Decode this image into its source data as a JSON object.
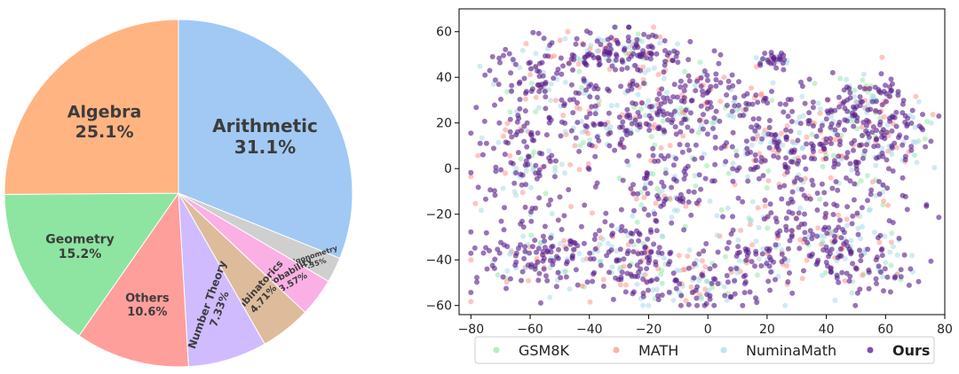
{
  "chart_data": [
    {
      "type": "pie",
      "slices": [
        {
          "label": "Arithmetic",
          "percent": 31.1,
          "value_text": "31.1%",
          "color": "#a1c9f4"
        },
        {
          "label": "Trigonometry",
          "percent": 2.35,
          "value_text": "2.35%",
          "color": "#cfcfcf"
        },
        {
          "label": "Probability",
          "percent": 3.57,
          "value_text": "3.57%",
          "color": "#fab0e4"
        },
        {
          "label": "Combinatorics",
          "percent": 4.71,
          "value_text": "4.71%",
          "color": "#debb9b"
        },
        {
          "label": "Number Theory",
          "percent": 7.33,
          "value_text": "7.33%",
          "color": "#d0bbff"
        },
        {
          "label": "Others",
          "percent": 10.6,
          "value_text": "10.6%",
          "color": "#ff9f9b"
        },
        {
          "label": "Geometry",
          "percent": 15.2,
          "value_text": "15.2%",
          "color": "#8de5a1"
        },
        {
          "label": "Algebra",
          "percent": 25.1,
          "value_text": "25.1%",
          "color": "#ffb482"
        }
      ],
      "start_angle_deg": 90,
      "direction": "clockwise"
    },
    {
      "type": "scatter",
      "title": "",
      "xlabel": "",
      "ylabel": "",
      "xlim": [
        -84,
        80
      ],
      "ylim": [
        -64,
        70
      ],
      "xticks": [
        -80,
        -60,
        -40,
        -20,
        0,
        20,
        40,
        60,
        80
      ],
      "yticks": [
        -60,
        -40,
        -20,
        0,
        20,
        40,
        60
      ],
      "legend_position": "bottom-outside",
      "series": [
        {
          "name": "GSM8K",
          "color": "#8de5a1",
          "alpha": 0.5,
          "bold": false,
          "count": 150
        },
        {
          "name": "MATH",
          "color": "#ff7c70",
          "alpha": 0.45,
          "bold": false,
          "count": 260
        },
        {
          "name": "NuminaMath",
          "color": "#a1d5e8",
          "alpha": 0.5,
          "bold": false,
          "count": 380
        },
        {
          "name": "Ours",
          "color": "#5a1e8c",
          "alpha": 0.62,
          "bold": true,
          "count": 1300
        }
      ],
      "clusters": [
        {
          "x": -28,
          "y": 50,
          "sx": 12,
          "sy": 6,
          "w": 1.3
        },
        {
          "x": -58,
          "y": 40,
          "sx": 10,
          "sy": 10,
          "w": 1.0
        },
        {
          "x": -62,
          "y": 5,
          "sx": 9,
          "sy": 12,
          "w": 1.0
        },
        {
          "x": -30,
          "y": 18,
          "sx": 12,
          "sy": 9,
          "w": 1.1
        },
        {
          "x": -10,
          "y": 28,
          "sx": 9,
          "sy": 8,
          "w": 0.8
        },
        {
          "x": -60,
          "y": -38,
          "sx": 9,
          "sy": 8,
          "w": 0.8
        },
        {
          "x": -35,
          "y": -35,
          "sx": 9,
          "sy": 9,
          "w": 0.8
        },
        {
          "x": -20,
          "y": -45,
          "sx": 10,
          "sy": 8,
          "w": 0.9
        },
        {
          "x": -15,
          "y": -10,
          "sx": 9,
          "sy": 10,
          "w": 0.8
        },
        {
          "x": 0,
          "y": -52,
          "sx": 6,
          "sy": 5,
          "w": 0.5
        },
        {
          "x": 22,
          "y": 48,
          "sx": 3,
          "sy": 2,
          "w": 0.25
        },
        {
          "x": 15,
          "y": 28,
          "sx": 9,
          "sy": 6,
          "w": 0.6
        },
        {
          "x": 22,
          "y": 8,
          "sx": 12,
          "sy": 9,
          "w": 1.1
        },
        {
          "x": 45,
          "y": 18,
          "sx": 12,
          "sy": 10,
          "w": 1.3
        },
        {
          "x": 60,
          "y": 5,
          "sx": 10,
          "sy": 12,
          "w": 1.0
        },
        {
          "x": 30,
          "y": -22,
          "sx": 12,
          "sy": 10,
          "w": 1.1
        },
        {
          "x": 48,
          "y": -40,
          "sx": 11,
          "sy": 8,
          "w": 1.0
        },
        {
          "x": 15,
          "y": -40,
          "sx": 8,
          "sy": 7,
          "w": 0.6
        },
        {
          "x": 55,
          "y": 30,
          "sx": 8,
          "sy": 6,
          "w": 0.6
        }
      ]
    }
  ]
}
